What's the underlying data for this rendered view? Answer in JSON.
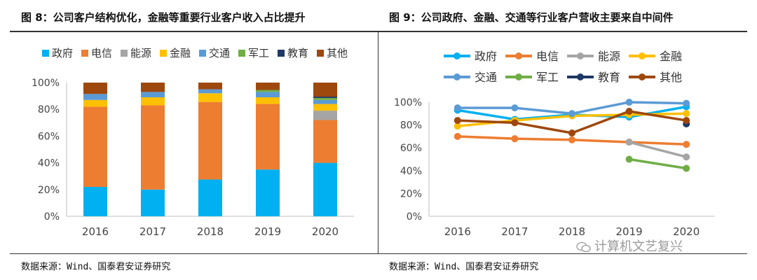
{
  "figures": {
    "left": {
      "title": "图 8：公司客户结构优化，金融等重要行业客户收入占比提升",
      "source": "数据来源：Wind、国泰君安证券研究"
    },
    "right": {
      "title": "图 9：公司政府、金融、交通等行业客户营收主要来自中间件",
      "source": "数据来源：Wind、国泰君安证券研究"
    }
  },
  "watermark": {
    "text": "计算机文艺复兴"
  },
  "chart_data": [
    {
      "type": "bar",
      "stacked": true,
      "title": "公司客户结构优化，金融等重要行业客户收入占比提升",
      "categories": [
        "2016",
        "2017",
        "2018",
        "2019",
        "2020"
      ],
      "ylim": [
        0,
        100
      ],
      "yticks": [
        "0%",
        "20%",
        "40%",
        "60%",
        "80%",
        "100%"
      ],
      "legend_position": "top",
      "series": [
        {
          "name": "政府",
          "color": "#00B0F0",
          "values": [
            22,
            20,
            27.5,
            35,
            40
          ]
        },
        {
          "name": "电信",
          "color": "#ED7D31",
          "values": [
            60,
            63,
            58,
            49,
            32
          ]
        },
        {
          "name": "能源",
          "color": "#A5A5A5",
          "values": [
            0,
            0,
            0,
            0,
            7
          ]
        },
        {
          "name": "金融",
          "color": "#FFC000",
          "values": [
            5,
            6,
            6.5,
            5,
            5
          ]
        },
        {
          "name": "交通",
          "color": "#5B9BD5",
          "values": [
            4.5,
            4,
            3,
            4,
            3
          ]
        },
        {
          "name": "军工",
          "color": "#70AD47",
          "values": [
            0,
            0,
            0,
            1.5,
            1.5
          ]
        },
        {
          "name": "教育",
          "color": "#1F3864",
          "values": [
            0,
            0,
            0,
            0,
            1
          ]
        },
        {
          "name": "其他",
          "color": "#9E480E",
          "values": [
            8.5,
            7,
            5,
            5.5,
            10.5
          ]
        }
      ]
    },
    {
      "type": "line",
      "title": "公司政府、金融、交通等行业客户营收主要来自中间件",
      "categories": [
        "2016",
        "2017",
        "2018",
        "2019",
        "2020"
      ],
      "ylim": [
        0,
        100
      ],
      "yticks": [
        "0%",
        "20%",
        "40%",
        "60%",
        "80%",
        "100%"
      ],
      "legend_position": "top",
      "series": [
        {
          "name": "政府",
          "color": "#00B0F0",
          "values": [
            93,
            85,
            89,
            87,
            96
          ]
        },
        {
          "name": "电信",
          "color": "#ED7D31",
          "values": [
            70,
            68,
            67,
            65,
            63
          ]
        },
        {
          "name": "能源",
          "color": "#A5A5A5",
          "values": [
            null,
            null,
            null,
            65,
            52
          ]
        },
        {
          "name": "金融",
          "color": "#FFC000",
          "values": [
            79,
            84,
            88,
            89,
            90
          ]
        },
        {
          "name": "交通",
          "color": "#5B9BD5",
          "values": [
            95,
            95,
            90,
            100,
            99
          ]
        },
        {
          "name": "军工",
          "color": "#70AD47",
          "values": [
            null,
            null,
            null,
            50,
            42
          ]
        },
        {
          "name": "教育",
          "color": "#1F3864",
          "values": [
            null,
            null,
            null,
            null,
            81
          ]
        },
        {
          "name": "其他",
          "color": "#9E480E",
          "values": [
            84,
            82,
            73,
            92,
            84
          ]
        }
      ]
    }
  ]
}
